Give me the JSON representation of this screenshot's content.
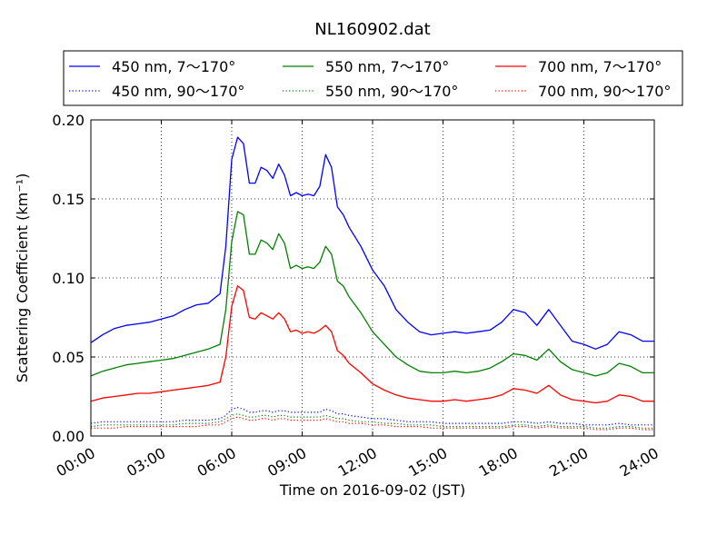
{
  "chart_data": {
    "type": "line",
    "title": "NL160902.dat",
    "xlabel": "Time on 2016-09-02 (JST)",
    "ylabel": "Scattering Coefficient (km⁻¹)",
    "x_unit": "hour",
    "xlim": [
      0,
      24
    ],
    "ylim": [
      0,
      0.2
    ],
    "xticks": [
      0,
      3,
      6,
      9,
      12,
      15,
      18,
      21,
      24
    ],
    "xtick_labels": [
      "00:00",
      "03:00",
      "06:00",
      "09:00",
      "12:00",
      "15:00",
      "18:00",
      "21:00",
      "24:00"
    ],
    "yticks": [
      0,
      0.05,
      0.1,
      0.15,
      0.2
    ],
    "ytick_labels": [
      "0.00",
      "0.05",
      "0.10",
      "0.15",
      "0.20"
    ],
    "grid": true,
    "legend_position": "top-center",
    "legend_columns": 3,
    "x": [
      0,
      0.5,
      1,
      1.5,
      2,
      2.5,
      3,
      3.5,
      4,
      4.5,
      5,
      5.5,
      5.75,
      6,
      6.25,
      6.5,
      6.75,
      7,
      7.25,
      7.5,
      7.75,
      8,
      8.25,
      8.5,
      8.75,
      9,
      9.25,
      9.5,
      9.75,
      10,
      10.25,
      10.5,
      10.75,
      11,
      11.5,
      12,
      12.5,
      13,
      13.5,
      14,
      14.5,
      15,
      15.5,
      16,
      16.5,
      17,
      17.5,
      18,
      18.5,
      19,
      19.5,
      20,
      20.5,
      21,
      21.5,
      22,
      22.5,
      23,
      23.5,
      24
    ],
    "series": [
      {
        "name": "450 nm, 7～170°",
        "color": "#0000ff",
        "style": "solid",
        "values": [
          0.059,
          0.064,
          0.068,
          0.07,
          0.071,
          0.072,
          0.074,
          0.076,
          0.08,
          0.083,
          0.084,
          0.09,
          0.12,
          0.175,
          0.189,
          0.185,
          0.16,
          0.16,
          0.17,
          0.168,
          0.163,
          0.172,
          0.165,
          0.152,
          0.154,
          0.152,
          0.153,
          0.152,
          0.158,
          0.178,
          0.17,
          0.145,
          0.14,
          0.132,
          0.12,
          0.105,
          0.095,
          0.08,
          0.072,
          0.066,
          0.064,
          0.065,
          0.066,
          0.065,
          0.066,
          0.067,
          0.072,
          0.08,
          0.078,
          0.07,
          0.08,
          0.07,
          0.06,
          0.058,
          0.055,
          0.058,
          0.066,
          0.064,
          0.06,
          0.06
        ]
      },
      {
        "name": "550 nm, 7～170°",
        "color": "#008000",
        "style": "solid",
        "values": [
          0.038,
          0.041,
          0.043,
          0.045,
          0.046,
          0.047,
          0.048,
          0.049,
          0.051,
          0.053,
          0.055,
          0.058,
          0.08,
          0.123,
          0.142,
          0.14,
          0.115,
          0.115,
          0.124,
          0.122,
          0.118,
          0.128,
          0.122,
          0.106,
          0.108,
          0.106,
          0.107,
          0.106,
          0.11,
          0.12,
          0.115,
          0.098,
          0.095,
          0.088,
          0.078,
          0.066,
          0.058,
          0.05,
          0.045,
          0.041,
          0.04,
          0.04,
          0.041,
          0.04,
          0.041,
          0.043,
          0.047,
          0.052,
          0.051,
          0.048,
          0.055,
          0.047,
          0.042,
          0.04,
          0.038,
          0.04,
          0.046,
          0.044,
          0.04,
          0.04
        ]
      },
      {
        "name": "700 nm, 7～170°",
        "color": "#ff0000",
        "style": "solid",
        "values": [
          0.022,
          0.024,
          0.025,
          0.026,
          0.027,
          0.027,
          0.028,
          0.029,
          0.03,
          0.031,
          0.032,
          0.034,
          0.05,
          0.082,
          0.095,
          0.092,
          0.075,
          0.074,
          0.078,
          0.076,
          0.074,
          0.078,
          0.074,
          0.066,
          0.067,
          0.065,
          0.066,
          0.065,
          0.067,
          0.07,
          0.066,
          0.054,
          0.051,
          0.046,
          0.04,
          0.033,
          0.029,
          0.026,
          0.024,
          0.023,
          0.022,
          0.022,
          0.023,
          0.022,
          0.023,
          0.024,
          0.026,
          0.03,
          0.029,
          0.027,
          0.032,
          0.026,
          0.023,
          0.022,
          0.021,
          0.022,
          0.026,
          0.025,
          0.022,
          0.022
        ]
      },
      {
        "name": "450 nm, 90～170°",
        "color": "#0000ff",
        "style": "dotted",
        "values": [
          0.008,
          0.009,
          0.009,
          0.009,
          0.009,
          0.009,
          0.009,
          0.009,
          0.01,
          0.01,
          0.01,
          0.011,
          0.013,
          0.017,
          0.018,
          0.017,
          0.015,
          0.015,
          0.016,
          0.016,
          0.015,
          0.016,
          0.016,
          0.015,
          0.015,
          0.015,
          0.015,
          0.015,
          0.015,
          0.017,
          0.016,
          0.014,
          0.014,
          0.013,
          0.012,
          0.011,
          0.011,
          0.01,
          0.009,
          0.009,
          0.009,
          0.008,
          0.008,
          0.008,
          0.008,
          0.008,
          0.008,
          0.009,
          0.009,
          0.008,
          0.009,
          0.008,
          0.008,
          0.007,
          0.007,
          0.007,
          0.008,
          0.007,
          0.007,
          0.007
        ]
      },
      {
        "name": "550 nm, 90～170°",
        "color": "#008000",
        "style": "dotted",
        "values": [
          0.006,
          0.007,
          0.007,
          0.007,
          0.007,
          0.007,
          0.007,
          0.007,
          0.008,
          0.008,
          0.008,
          0.009,
          0.011,
          0.013,
          0.014,
          0.013,
          0.012,
          0.012,
          0.013,
          0.013,
          0.012,
          0.013,
          0.013,
          0.012,
          0.012,
          0.012,
          0.012,
          0.012,
          0.012,
          0.013,
          0.012,
          0.011,
          0.011,
          0.01,
          0.009,
          0.009,
          0.008,
          0.008,
          0.007,
          0.007,
          0.007,
          0.006,
          0.006,
          0.006,
          0.006,
          0.006,
          0.006,
          0.007,
          0.007,
          0.006,
          0.007,
          0.006,
          0.006,
          0.006,
          0.005,
          0.005,
          0.006,
          0.006,
          0.005,
          0.005
        ]
      },
      {
        "name": "700 nm, 90～170°",
        "color": "#ff0000",
        "style": "dotted",
        "values": [
          0.005,
          0.005,
          0.005,
          0.006,
          0.006,
          0.006,
          0.006,
          0.006,
          0.006,
          0.006,
          0.007,
          0.007,
          0.009,
          0.011,
          0.012,
          0.011,
          0.01,
          0.01,
          0.011,
          0.011,
          0.01,
          0.011,
          0.011,
          0.01,
          0.01,
          0.01,
          0.01,
          0.01,
          0.01,
          0.011,
          0.01,
          0.009,
          0.009,
          0.008,
          0.008,
          0.007,
          0.007,
          0.006,
          0.006,
          0.006,
          0.005,
          0.005,
          0.005,
          0.005,
          0.005,
          0.005,
          0.005,
          0.006,
          0.006,
          0.005,
          0.006,
          0.005,
          0.005,
          0.005,
          0.004,
          0.004,
          0.005,
          0.005,
          0.004,
          0.004
        ]
      }
    ]
  }
}
